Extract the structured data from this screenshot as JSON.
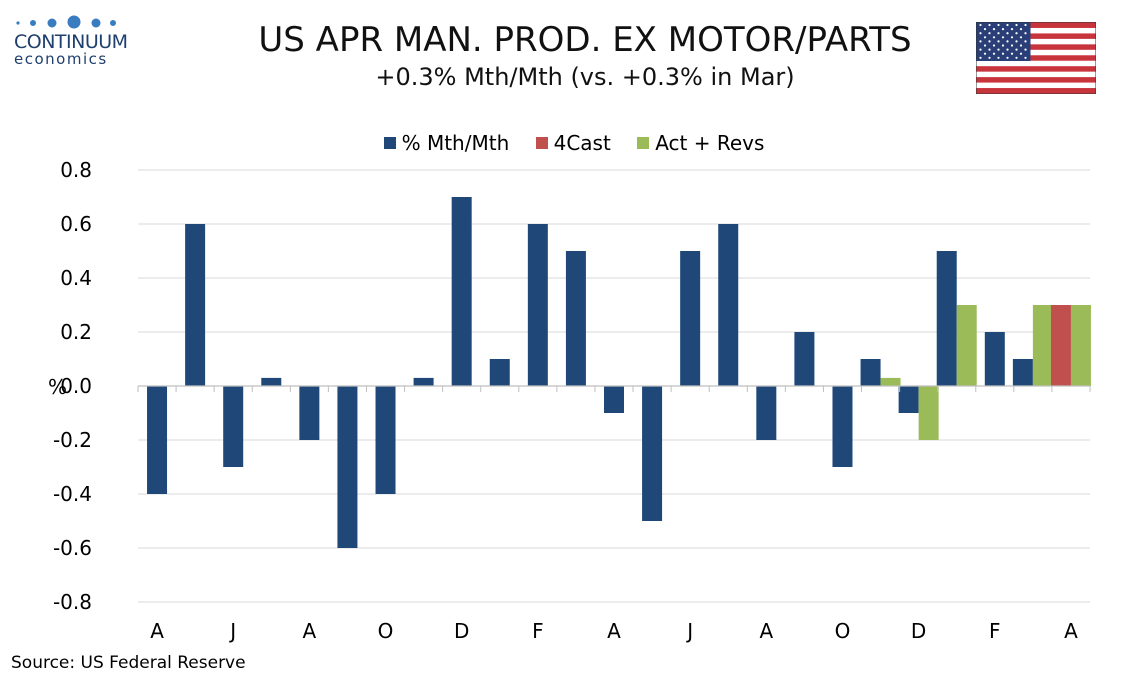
{
  "brand": {
    "name": "CONTINUUM",
    "sub": "economics",
    "color": "#1f3f6e"
  },
  "flag_icon": "us-flag-icon",
  "chart_data": {
    "type": "bar",
    "title": "US APR MAN. PROD. EX MOTOR/PARTS",
    "subtitle": "+0.3% Mth/Mth (vs. +0.3% in Mar)",
    "ylabel": "%",
    "ylim": [
      -0.8,
      0.8
    ],
    "yticks": [
      0.8,
      0.6,
      0.4,
      0.2,
      0.0,
      -0.2,
      -0.4,
      -0.6,
      -0.8
    ],
    "ytick_labels": [
      "0.8",
      "0.6",
      "0.4",
      "0.2",
      "0.0",
      "-0.2",
      "-0.4",
      "-0.6",
      "-0.8"
    ],
    "xtick_labels": [
      "A",
      "J",
      "A",
      "O",
      "D",
      "F",
      "A",
      "J",
      "A",
      "O",
      "D",
      "F",
      "A"
    ],
    "grid": true,
    "legend_position": "top-center",
    "series": [
      {
        "name": "% Mth/Mth",
        "color": "#1f4878",
        "values": [
          -0.4,
          0.6,
          -0.3,
          0.03,
          -0.2,
          -0.6,
          -0.4,
          0.03,
          0.7,
          0.1,
          0.6,
          0.5,
          -0.1,
          -0.5,
          0.5,
          0.6,
          -0.2,
          0.2,
          -0.3,
          0.1,
          -0.1,
          0.5,
          0.2,
          0.1,
          null
        ]
      },
      {
        "name": "4Cast",
        "color": "#c0504d",
        "values": [
          null,
          null,
          null,
          null,
          null,
          null,
          null,
          null,
          null,
          null,
          null,
          null,
          null,
          null,
          null,
          null,
          null,
          null,
          null,
          null,
          null,
          null,
          null,
          null,
          0.3
        ]
      },
      {
        "name": "Act + Revs",
        "color": "#9bbb59",
        "values": [
          null,
          null,
          null,
          null,
          null,
          null,
          null,
          null,
          null,
          null,
          null,
          null,
          null,
          null,
          null,
          null,
          null,
          null,
          null,
          0.03,
          -0.2,
          0.3,
          null,
          0.3,
          0.3
        ]
      }
    ]
  },
  "source": "Source: US Federal Reserve"
}
